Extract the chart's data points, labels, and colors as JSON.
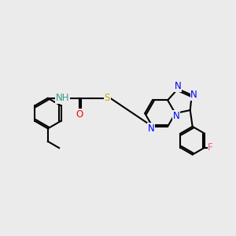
{
  "bg_color": "#ebebeb",
  "bond_color": "#000000",
  "bond_width": 1.5,
  "atom_colors": {
    "N": "#0000ff",
    "O": "#ff0000",
    "S": "#ccaa00",
    "F": "#e060a0",
    "H": "#3a9a8a",
    "C": "#000000"
  },
  "font_size": 8.5
}
